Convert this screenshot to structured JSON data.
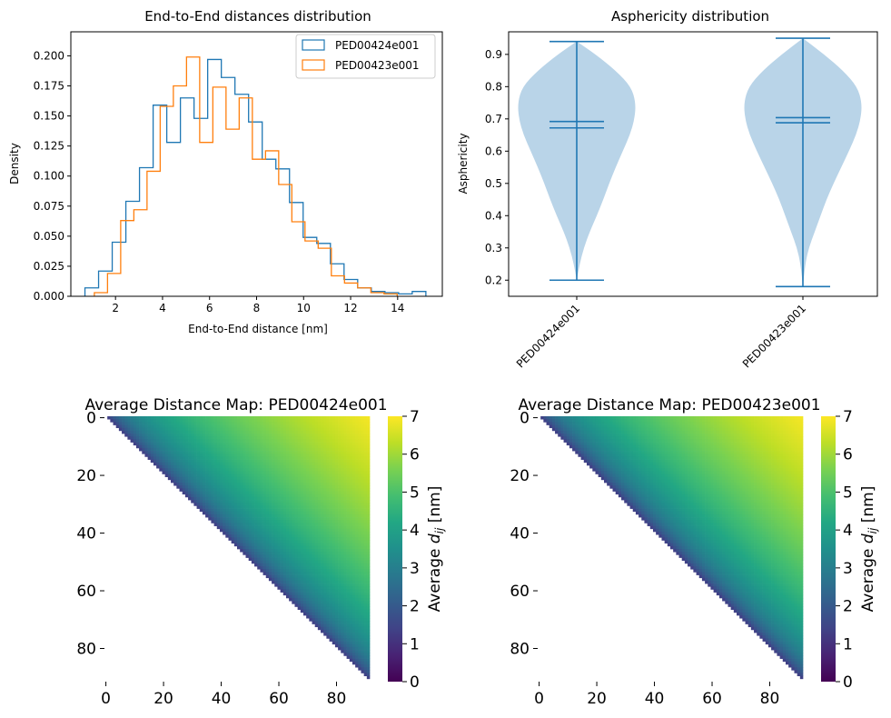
{
  "colors": {
    "series_a": "#1f77b4",
    "series_b": "#ff7f0e",
    "violin_fill": "#b9d4e8",
    "violin_line": "#1f77b4",
    "colormap": "viridis"
  },
  "chart_data": [
    {
      "type": "histogram",
      "title": "End-to-End distances distribution",
      "xlabel": "End-to-End distance [nm]",
      "ylabel": "Density",
      "xlim": [
        0.1,
        15.9
      ],
      "ylim": [
        0,
        0.22
      ],
      "xticks": [
        2,
        4,
        6,
        8,
        10,
        12,
        14
      ],
      "xtick_labels": [
        "2",
        "4",
        "6",
        "8",
        "10",
        "12",
        "14"
      ],
      "yticks": [
        0,
        0.025,
        0.05,
        0.075,
        0.1,
        0.125,
        0.15,
        0.175,
        0.2
      ],
      "ytick_labels": [
        "0.000",
        "0.025",
        "0.050",
        "0.075",
        "0.100",
        "0.125",
        "0.150",
        "0.175",
        "0.200"
      ],
      "legend_position": "top-right",
      "series": [
        {
          "name": "PED00424e001",
          "bin_edges": [
            0.7,
            1.28,
            1.86,
            2.44,
            3.02,
            3.6,
            4.18,
            4.76,
            5.34,
            5.92,
            6.5,
            7.08,
            7.66,
            8.24,
            8.82,
            9.4,
            9.98,
            10.56,
            11.14,
            11.72,
            12.3,
            12.88,
            13.46,
            14.04,
            14.62,
            15.2
          ],
          "densities": [
            0.007,
            0.021,
            0.045,
            0.079,
            0.107,
            0.159,
            0.128,
            0.165,
            0.148,
            0.197,
            0.182,
            0.168,
            0.145,
            0.114,
            0.106,
            0.078,
            0.049,
            0.044,
            0.027,
            0.014,
            0.007,
            0.004,
            0.003,
            0.002,
            0.004
          ]
        },
        {
          "name": "PED00423e001",
          "bin_edges": [
            1.1,
            1.66,
            2.22,
            2.78,
            3.34,
            3.9,
            4.46,
            5.02,
            5.58,
            6.14,
            6.7,
            7.26,
            7.82,
            8.38,
            8.94,
            9.5,
            10.06,
            10.62,
            11.18,
            11.74,
            12.3,
            12.86,
            13.42,
            13.98
          ],
          "densities": [
            0.003,
            0.019,
            0.063,
            0.072,
            0.104,
            0.158,
            0.175,
            0.199,
            0.128,
            0.174,
            0.139,
            0.165,
            0.114,
            0.121,
            0.093,
            0.062,
            0.046,
            0.04,
            0.017,
            0.011,
            0.007,
            0.003,
            0.002
          ]
        }
      ]
    },
    {
      "type": "violin",
      "title": "Asphericity distribution",
      "ylabel": "Asphericity",
      "ylim": [
        0.15,
        0.97
      ],
      "yticks": [
        0.2,
        0.3,
        0.4,
        0.5,
        0.6,
        0.7,
        0.8,
        0.9
      ],
      "ytick_labels": [
        "0.2",
        "0.3",
        "0.4",
        "0.5",
        "0.6",
        "0.7",
        "0.8",
        "0.9"
      ],
      "categories": [
        "PED00424e001",
        "PED00423e001"
      ],
      "series": [
        {
          "min": 0.2,
          "max": 0.94,
          "mean": 0.692,
          "median": 0.672,
          "profile_y": [
            0.2,
            0.25,
            0.3,
            0.35,
            0.4,
            0.45,
            0.5,
            0.55,
            0.6,
            0.65,
            0.7,
            0.75,
            0.8,
            0.85,
            0.9,
            0.94
          ],
          "profile_w": [
            0.0,
            0.05,
            0.12,
            0.22,
            0.34,
            0.45,
            0.55,
            0.66,
            0.78,
            0.9,
            0.98,
            1.0,
            0.92,
            0.66,
            0.32,
            0.0
          ]
        },
        {
          "min": 0.18,
          "max": 0.95,
          "mean": 0.704,
          "median": 0.688,
          "profile_y": [
            0.18,
            0.25,
            0.3,
            0.35,
            0.4,
            0.45,
            0.5,
            0.55,
            0.6,
            0.65,
            0.7,
            0.75,
            0.8,
            0.85,
            0.9,
            0.95
          ],
          "profile_w": [
            0.0,
            0.04,
            0.1,
            0.2,
            0.3,
            0.4,
            0.52,
            0.65,
            0.78,
            0.9,
            0.98,
            1.0,
            0.92,
            0.68,
            0.36,
            0.0
          ]
        }
      ]
    },
    {
      "type": "heatmap",
      "title": "Average Distance Map: PED00424e001",
      "size": 92,
      "xticks": [
        0,
        20,
        40,
        60,
        80
      ],
      "yticks": [
        0,
        20,
        40,
        60,
        80
      ],
      "tick_labels": [
        "0",
        "20",
        "40",
        "60",
        "80"
      ],
      "vmin": 0,
      "vmax": 7,
      "colorbar_ticks": [
        "0",
        "1",
        "2",
        "3",
        "4",
        "5",
        "6",
        "7"
      ],
      "colorbar_label": "Average d_ij [nm]",
      "colorbar_label_main": "Average ",
      "colorbar_label_var": "d",
      "colorbar_label_sub": "ij",
      "colorbar_label_unit": " [nm]",
      "model": {
        "scale": 1.35,
        "exponent": 0.36,
        "corner_value": 6.9
      }
    },
    {
      "type": "heatmap",
      "title": "Average Distance Map: PED00423e001",
      "size": 92,
      "xticks": [
        0,
        20,
        40,
        60,
        80
      ],
      "yticks": [
        0,
        20,
        40,
        60,
        80
      ],
      "tick_labels": [
        "0",
        "20",
        "40",
        "60",
        "80"
      ],
      "vmin": 0,
      "vmax": 7,
      "colorbar_ticks": [
        "0",
        "1",
        "2",
        "3",
        "4",
        "5",
        "6",
        "7"
      ],
      "colorbar_label": "Average d_ij [nm]",
      "colorbar_label_main": "Average ",
      "colorbar_label_var": "d",
      "colorbar_label_sub": "ij",
      "colorbar_label_unit": " [nm]",
      "model": {
        "scale": 1.35,
        "exponent": 0.36,
        "corner_value": 6.9
      }
    }
  ]
}
